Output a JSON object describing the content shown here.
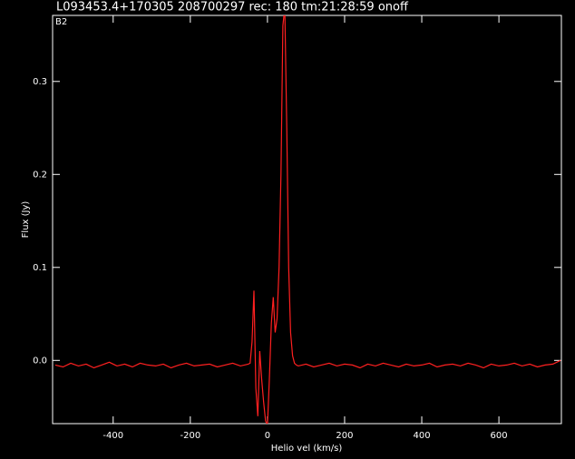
{
  "chart_data": {
    "type": "line",
    "title": "L093453.4+170305 208700297 rec: 180 tm:21:28:59 onoff",
    "annotation": "B2",
    "xlabel": "Helio vel (km/s)",
    "ylabel": "Flux (Jy)",
    "xlim": [
      -557,
      762
    ],
    "ylim": [
      -0.068,
      0.371
    ],
    "xticks": [
      -400,
      -200,
      0,
      200,
      400,
      600
    ],
    "yticks": [
      {
        "value": 0,
        "label": "0.0"
      },
      0.1,
      0.2,
      0.3
    ],
    "series": [
      {
        "color": "#ff2020",
        "x": [
          -550,
          -530,
          -510,
          -490,
          -470,
          -450,
          -430,
          -410,
          -390,
          -370,
          -350,
          -330,
          -310,
          -290,
          -270,
          -250,
          -230,
          -210,
          -190,
          -170,
          -150,
          -130,
          -110,
          -90,
          -70,
          -50,
          -45,
          -40,
          -35,
          -30,
          -25,
          -20,
          -15,
          -10,
          -5,
          0,
          5,
          10,
          15,
          20,
          25,
          30,
          35,
          40,
          45,
          50,
          55,
          60,
          65,
          70,
          75,
          80,
          100,
          120,
          140,
          160,
          180,
          200,
          220,
          240,
          260,
          280,
          300,
          320,
          340,
          360,
          380,
          400,
          420,
          440,
          460,
          480,
          500,
          520,
          540,
          560,
          580,
          600,
          620,
          640,
          660,
          680,
          700,
          720,
          740,
          760
        ],
        "values": [
          -0.005,
          -0.007,
          -0.003,
          -0.006,
          -0.004,
          -0.008,
          -0.005,
          -0.002,
          -0.006,
          -0.004,
          -0.007,
          -0.003,
          -0.005,
          -0.006,
          -0.004,
          -0.008,
          -0.005,
          -0.003,
          -0.006,
          -0.005,
          -0.004,
          -0.007,
          -0.005,
          -0.003,
          -0.006,
          -0.004,
          -0.003,
          0.02,
          0.075,
          -0.03,
          -0.06,
          0.01,
          -0.02,
          -0.045,
          -0.065,
          -0.07,
          -0.02,
          0.04,
          0.068,
          0.03,
          0.045,
          0.1,
          0.2,
          0.36,
          0.38,
          0.25,
          0.1,
          0.03,
          0.005,
          -0.003,
          -0.005,
          -0.006,
          -0.004,
          -0.007,
          -0.005,
          -0.003,
          -0.006,
          -0.004,
          -0.005,
          -0.008,
          -0.004,
          -0.006,
          -0.003,
          -0.005,
          -0.007,
          -0.004,
          -0.006,
          -0.005,
          -0.003,
          -0.007,
          -0.005,
          -0.004,
          -0.006,
          -0.003,
          -0.005,
          -0.008,
          -0.004,
          -0.006,
          -0.005,
          -0.003,
          -0.006,
          -0.004,
          -0.007,
          -0.005,
          -0.004,
          0.0
        ]
      }
    ]
  }
}
